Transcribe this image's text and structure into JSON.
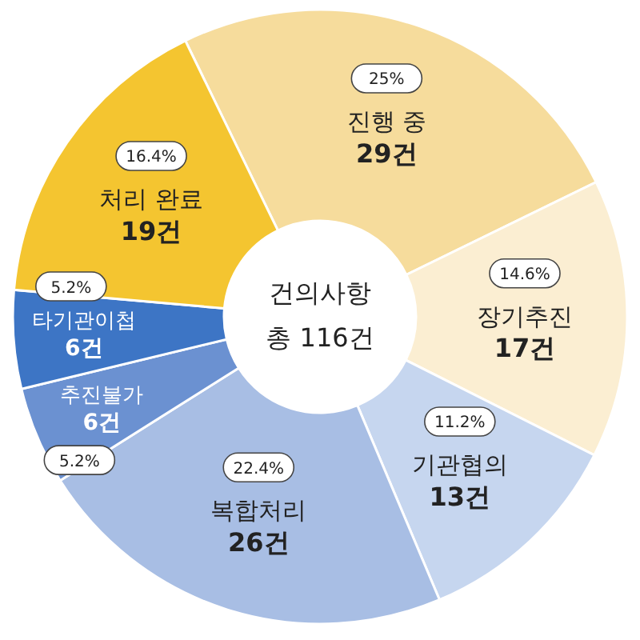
{
  "chart_data": {
    "type": "donut",
    "title": "건의사항",
    "subtitle": "총 116건",
    "categories": [
      "진행 중",
      "장기추진",
      "기관협의",
      "복합처리",
      "추진불가",
      "타기관이첩",
      "처리 완료"
    ],
    "values": [
      29,
      17,
      13,
      26,
      6,
      6,
      19
    ],
    "value_labels": [
      "29건",
      "17건",
      "13건",
      "26건",
      "6건",
      "6건",
      "19건"
    ],
    "colors": [
      "#f6dc9c",
      "#fbeed2",
      "#c6d6ef",
      "#a8bee4",
      "#6b91d1",
      "#3d75c5",
      "#f4c530"
    ],
    "annotations": [
      {
        "text": "25%",
        "x": "진행 중"
      },
      {
        "text": "14.6%",
        "x": "장기추진"
      },
      {
        "text": "11.2%",
        "x": "기관협의"
      },
      {
        "text": "22.4%",
        "x": "복합처리"
      },
      {
        "text": "5.2%",
        "x": "추진불가"
      },
      {
        "text": "5.2%",
        "x": "타기관이첩"
      },
      {
        "text": "16.4%",
        "x": "처리 완료"
      }
    ]
  }
}
